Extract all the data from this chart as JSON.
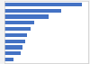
{
  "values": [
    2580,
    1900,
    1470,
    980,
    870,
    760,
    700,
    610,
    540,
    310
  ],
  "bar_color": "#4472c4",
  "background_color": "#f2f2f2",
  "plot_bg": "#ffffff",
  "xlim": [
    0,
    2800
  ],
  "bar_height": 0.6,
  "n_bars": 10
}
